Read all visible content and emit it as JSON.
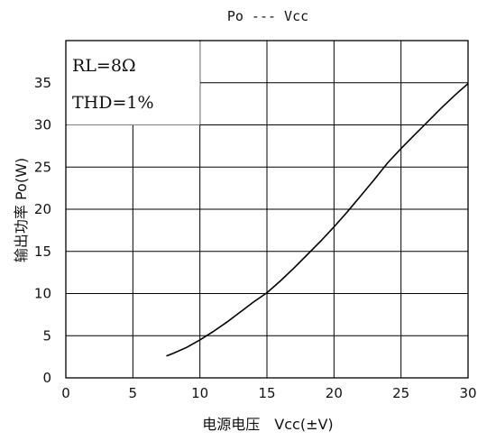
{
  "chart_data": {
    "type": "line",
    "title": "Po --- Vcc",
    "xlabel": "电源电压　Vcc(±V)",
    "ylabel": "输出功率 Po(W)",
    "xlim": [
      0,
      30
    ],
    "ylim": [
      0,
      40
    ],
    "x_ticks": [
      "0",
      "5",
      "10",
      "15",
      "20",
      "25",
      "30"
    ],
    "y_ticks": [
      "0",
      "5",
      "10",
      "15",
      "20",
      "25",
      "30",
      "35"
    ],
    "grid": true,
    "annotations": [
      "RL=8Ω",
      "THD=1%"
    ],
    "series": [
      {
        "x": [
          7.5,
          8,
          9,
          10,
          11,
          12,
          13,
          14,
          15,
          16,
          17,
          18,
          19,
          20,
          21,
          22,
          23,
          24,
          25,
          26,
          27,
          28,
          29,
          30
        ],
        "y": [
          2.6,
          2.9,
          3.6,
          4.5,
          5.5,
          6.6,
          7.8,
          9.0,
          10.1,
          11.5,
          13.0,
          14.6,
          16.2,
          17.9,
          19.7,
          21.6,
          23.5,
          25.5,
          27.2,
          28.8,
          30.4,
          32.0,
          33.5,
          34.9
        ]
      }
    ]
  },
  "colors": {
    "line": "#000000",
    "grid": "#000000"
  }
}
